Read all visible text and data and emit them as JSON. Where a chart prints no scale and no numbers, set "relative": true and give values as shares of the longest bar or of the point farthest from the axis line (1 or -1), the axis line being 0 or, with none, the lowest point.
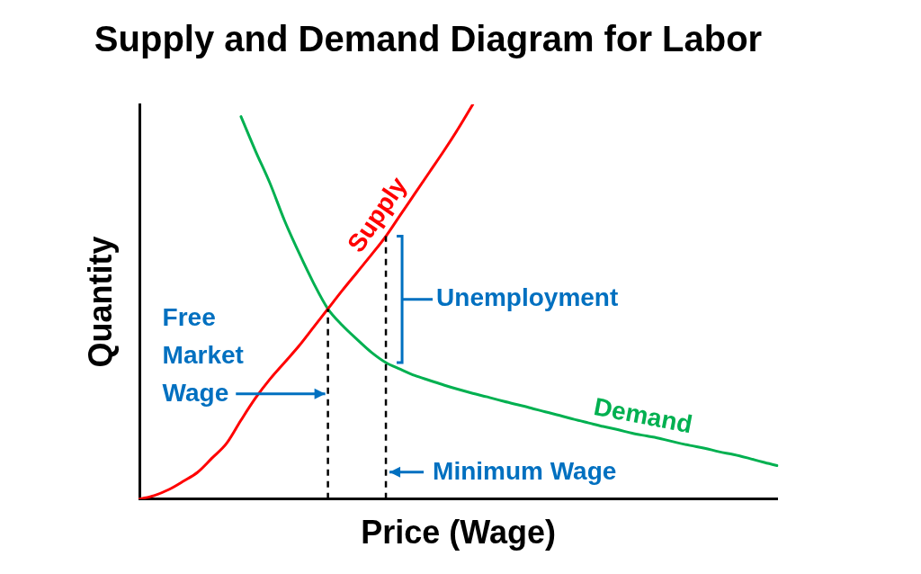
{
  "chart_data": {
    "type": "line",
    "title": "Supply and Demand Diagram for Labor",
    "xlabel": "Price (Wage)",
    "ylabel": "Quantity",
    "relative": true,
    "legend": false,
    "marker": "none",
    "line_style": "solid",
    "categories": [
      null,
      null,
      null,
      null,
      null,
      null,
      null,
      null,
      null,
      null,
      null,
      null,
      null,
      null,
      null,
      null,
      null,
      null,
      null,
      null,
      null,
      null,
      null,
      null,
      null,
      null,
      null,
      null,
      null,
      null,
      null,
      null,
      null,
      null,
      null,
      null,
      null,
      null,
      null,
      null,
      null,
      null,
      null,
      null,
      null
    ],
    "series": [
      {
        "name": "Supply",
        "color": "#ff0000",
        "values": [
          0,
          0.009,
          0.024,
          0.045,
          0.068,
          0.104,
          0.141,
          0.2,
          0.256,
          0.304,
          0.346,
          0.388,
          0.435,
          0.482,
          0.529,
          0.574,
          0.619,
          0.666,
          0.72,
          0.774,
          0.828,
          0.882,
          0.939,
          1,
          null,
          null,
          null,
          null,
          null,
          null,
          null,
          null,
          null,
          null,
          null,
          null,
          null,
          null,
          null,
          null,
          null,
          null,
          null,
          null,
          null
        ]
      },
      {
        "name": "Demand",
        "color": "#00b050",
        "values": [
          null,
          null,
          null,
          null,
          null,
          null,
          null,
          0.969,
          0.882,
          0.8,
          0.706,
          0.624,
          0.548,
          0.482,
          0.44,
          0.405,
          0.372,
          0.346,
          0.329,
          0.313,
          0.301,
          0.289,
          0.278,
          0.268,
          0.259,
          0.249,
          0.24,
          0.231,
          0.221,
          0.212,
          0.202,
          0.193,
          0.184,
          0.176,
          0.167,
          0.16,
          0.153,
          0.144,
          0.136,
          0.129,
          0.12,
          0.113,
          0.104,
          0.094,
          0.085
        ]
      }
    ],
    "annotations": [
      "Free Market Wage",
      "Unemployment",
      "Minimum Wage"
    ]
  }
}
